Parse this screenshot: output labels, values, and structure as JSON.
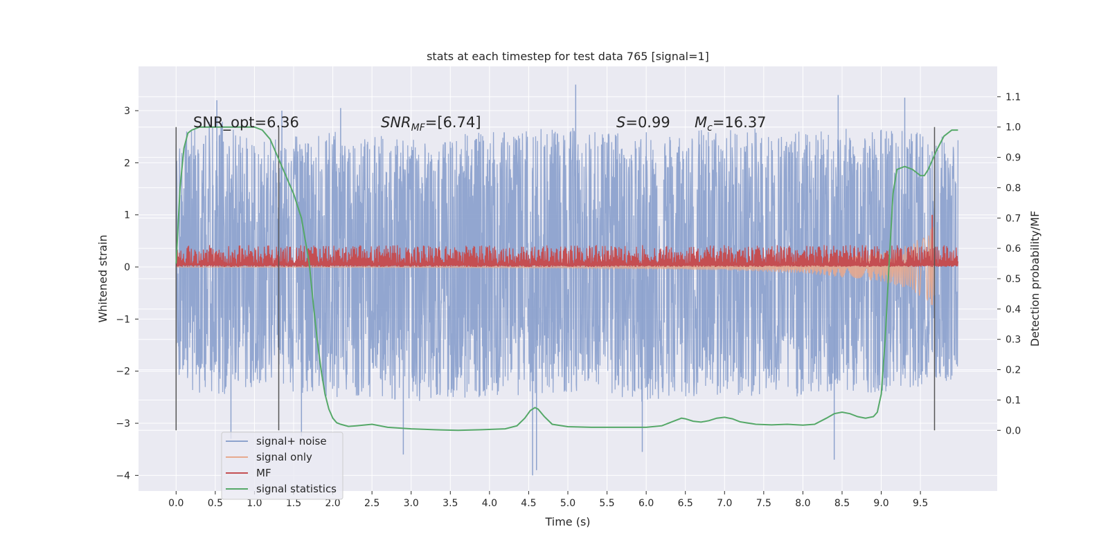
{
  "chart_data": {
    "type": "line",
    "title": "stats at each timestep for test data 765 [signal=1]",
    "xlabel": "Time (s)",
    "ylabel_left": "Whitened strain",
    "ylabel_right": "Detection probability/MF",
    "xlim": [
      -0.48,
      10.48
    ],
    "ylim_left": [
      -4.3,
      3.85
    ],
    "ylim_right": [
      -0.2,
      1.2
    ],
    "x_ticks": [
      "0.0",
      "0.5",
      "1.0",
      "1.5",
      "2.0",
      "2.5",
      "3.0",
      "3.5",
      "4.0",
      "4.5",
      "5.0",
      "5.5",
      "6.0",
      "6.5",
      "7.0",
      "7.5",
      "8.0",
      "8.5",
      "9.0",
      "9.5"
    ],
    "y_ticks_left": [
      "−4",
      "−3",
      "−2",
      "−1",
      "0",
      "1",
      "2",
      "3"
    ],
    "y_ticks_right": [
      "0.0",
      "0.1",
      "0.2",
      "0.3",
      "0.4",
      "0.5",
      "0.6",
      "0.7",
      "0.8",
      "0.9",
      "1.0",
      "1.1"
    ],
    "grid": true,
    "legend_position": "lower-left",
    "annotations": {
      "snr_opt": "SNR_opt=6.36",
      "snr_mf_main": "SNR",
      "snr_mf_sub": "MF",
      "snr_mf_value": "=[6.74]",
      "s_main": "S",
      "s_value": "=0.99",
      "mc_main": "M",
      "mc_sub": "c",
      "mc_value": "=16.37"
    },
    "vertical_lines_x": [
      0.0,
      1.31,
      9.68
    ],
    "series": [
      {
        "name": "signal+ noise",
        "color": "#8da2cd",
        "axis": "left",
        "description_values": "dense noise in range about -4.0 to 3.5",
        "envelope_top": [
          [
            0.0,
            2.5
          ],
          [
            0.5,
            2.9
          ],
          [
            1.0,
            2.4
          ],
          [
            2.0,
            2.6
          ],
          [
            3.0,
            2.5
          ],
          [
            4.0,
            2.6
          ],
          [
            5.0,
            2.7
          ],
          [
            6.0,
            2.6
          ],
          [
            7.0,
            2.7
          ],
          [
            8.0,
            2.6
          ],
          [
            9.0,
            2.7
          ],
          [
            9.95,
            2.5
          ]
        ],
        "envelope_bottom": [
          [
            0.0,
            -2.2
          ],
          [
            0.5,
            -2.6
          ],
          [
            1.0,
            -2.3
          ],
          [
            2.0,
            -2.5
          ],
          [
            3.0,
            -2.6
          ],
          [
            4.0,
            -2.5
          ],
          [
            5.0,
            -2.4
          ],
          [
            6.0,
            -2.6
          ],
          [
            7.0,
            -2.5
          ],
          [
            8.0,
            -2.5
          ],
          [
            9.0,
            -2.4
          ],
          [
            9.95,
            -2.2
          ]
        ],
        "spikes": [
          [
            0.52,
            3.2
          ],
          [
            1.35,
            3.0
          ],
          [
            2.1,
            3.05
          ],
          [
            4.55,
            -4.0
          ],
          [
            5.1,
            3.5
          ],
          [
            2.9,
            -3.6
          ],
          [
            5.95,
            -3.55
          ],
          [
            8.45,
            3.3
          ],
          [
            8.4,
            -3.7
          ],
          [
            9.3,
            3.25
          ],
          [
            0.7,
            -3.3
          ],
          [
            1.6,
            -3.25
          ],
          [
            4.6,
            -3.9
          ]
        ]
      },
      {
        "name": "signal only",
        "color": "#e7a98d",
        "axis": "left",
        "chirp": [
          [
            0.0,
            0.0
          ],
          [
            5.0,
            0.02
          ],
          [
            7.0,
            0.06
          ],
          [
            8.0,
            0.12
          ],
          [
            9.0,
            0.28
          ],
          [
            9.4,
            0.45
          ],
          [
            9.6,
            0.7
          ],
          [
            9.68,
            0.85
          ]
        ]
      },
      {
        "name": "MF",
        "color": "#c44e52",
        "axis": "left",
        "band": [
          0.0,
          0.42
        ],
        "peak": [
          9.65,
          1.0
        ]
      },
      {
        "name": "signal statistics",
        "color": "#55a868",
        "axis": "right",
        "x": [
          0.0,
          0.05,
          0.1,
          0.15,
          0.2,
          0.3,
          0.5,
          0.7,
          0.9,
          1.0,
          1.1,
          1.2,
          1.3,
          1.4,
          1.5,
          1.6,
          1.7,
          1.75,
          1.8,
          1.85,
          1.9,
          1.95,
          2.0,
          2.05,
          2.1,
          2.2,
          2.3,
          2.5,
          2.7,
          3.0,
          3.3,
          3.6,
          3.9,
          4.2,
          4.35,
          4.45,
          4.52,
          4.58,
          4.62,
          4.7,
          4.8,
          5.0,
          5.3,
          5.6,
          6.0,
          6.2,
          6.35,
          6.45,
          6.5,
          6.6,
          6.7,
          6.8,
          6.9,
          7.0,
          7.1,
          7.2,
          7.4,
          7.6,
          7.8,
          8.0,
          8.15,
          8.3,
          8.4,
          8.5,
          8.6,
          8.7,
          8.8,
          8.9,
          8.95,
          9.0,
          9.05,
          9.1,
          9.15,
          9.2,
          9.3,
          9.4,
          9.5,
          9.55,
          9.6,
          9.7,
          9.8,
          9.9,
          9.98
        ],
        "values": [
          0.55,
          0.8,
          0.93,
          0.98,
          0.99,
          1.0,
          1.0,
          1.0,
          1.0,
          1.0,
          0.99,
          0.96,
          0.9,
          0.84,
          0.78,
          0.7,
          0.55,
          0.42,
          0.3,
          0.2,
          0.12,
          0.07,
          0.04,
          0.025,
          0.02,
          0.013,
          0.015,
          0.02,
          0.01,
          0.005,
          0.002,
          0.0,
          0.002,
          0.005,
          0.015,
          0.04,
          0.065,
          0.075,
          0.07,
          0.045,
          0.02,
          0.012,
          0.01,
          0.01,
          0.01,
          0.015,
          0.03,
          0.04,
          0.038,
          0.03,
          0.027,
          0.032,
          0.04,
          0.043,
          0.038,
          0.028,
          0.02,
          0.018,
          0.02,
          0.017,
          0.02,
          0.04,
          0.055,
          0.06,
          0.055,
          0.045,
          0.04,
          0.045,
          0.06,
          0.12,
          0.3,
          0.55,
          0.78,
          0.86,
          0.87,
          0.86,
          0.84,
          0.84,
          0.86,
          0.92,
          0.97,
          0.99,
          0.99
        ]
      }
    ]
  }
}
